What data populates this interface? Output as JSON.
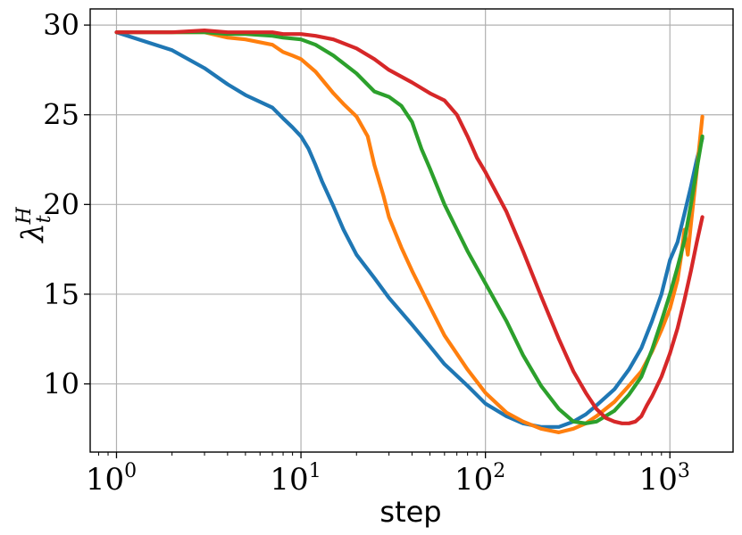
{
  "chart_data": {
    "type": "line",
    "title": "",
    "xlabel": "step",
    "ylabel": "λ",
    "ylabel_superscript": "H",
    "ylabel_subscript": "t",
    "xscale": "log",
    "xlim": [
      0.72,
      2200
    ],
    "ylim": [
      6.2,
      30.9
    ],
    "grid": true,
    "x_ticks": [
      {
        "value": 1,
        "base": "10",
        "exp": "0"
      },
      {
        "value": 10,
        "base": "10",
        "exp": "1"
      },
      {
        "value": 100,
        "base": "10",
        "exp": "2"
      },
      {
        "value": 1000,
        "base": "10",
        "exp": "3"
      }
    ],
    "y_ticks": [
      {
        "value": 10,
        "label": "10"
      },
      {
        "value": 15,
        "label": "15"
      },
      {
        "value": 20,
        "label": "20"
      },
      {
        "value": 25,
        "label": "25"
      },
      {
        "value": 30,
        "label": "30"
      }
    ],
    "series": [
      {
        "color": "#1f77b4",
        "x": [
          1,
          2,
          3,
          4,
          5,
          7,
          8,
          9,
          10,
          11,
          12,
          13,
          15,
          17,
          20,
          25,
          30,
          40,
          50,
          60,
          80,
          100,
          130,
          160,
          200,
          250,
          300,
          350,
          400,
          500,
          600,
          700,
          800,
          900,
          1000,
          1100,
          1200,
          1300,
          1400,
          1500
        ],
        "y": [
          29.6,
          28.6,
          27.6,
          26.7,
          26.1,
          25.4,
          24.8,
          24.3,
          23.8,
          23.1,
          22.2,
          21.3,
          19.9,
          18.6,
          17.2,
          15.9,
          14.8,
          13.3,
          12.1,
          11.1,
          9.9,
          8.9,
          8.2,
          7.8,
          7.6,
          7.6,
          7.9,
          8.3,
          8.8,
          9.7,
          10.8,
          12.0,
          13.5,
          15.0,
          16.9,
          17.9,
          19.5,
          21.0,
          22.5,
          23.7
        ]
      },
      {
        "color": "#ff7f0e",
        "x": [
          1,
          2,
          3,
          4,
          5,
          7,
          8,
          9,
          10,
          12,
          15,
          17,
          20,
          23,
          25,
          28,
          30,
          35,
          40,
          50,
          60,
          80,
          100,
          130,
          160,
          200,
          250,
          300,
          350,
          400,
          500,
          600,
          700,
          800,
          900,
          1000,
          1100,
          1150,
          1200,
          1250,
          1300,
          1400,
          1500
        ],
        "y": [
          29.6,
          29.6,
          29.6,
          29.3,
          29.2,
          28.9,
          28.5,
          28.3,
          28.1,
          27.4,
          26.2,
          25.6,
          24.9,
          23.8,
          22.2,
          20.5,
          19.3,
          17.6,
          16.3,
          14.3,
          12.7,
          10.8,
          9.5,
          8.4,
          7.9,
          7.5,
          7.3,
          7.5,
          7.8,
          8.2,
          9.0,
          9.9,
          10.7,
          11.8,
          13.0,
          14.2,
          15.8,
          17.1,
          18.6,
          17.2,
          18.9,
          21.9,
          24.9
        ]
      },
      {
        "color": "#2ca02c",
        "x": [
          1,
          2,
          3,
          4,
          5,
          7,
          8,
          10,
          12,
          15,
          20,
          25,
          30,
          35,
          40,
          45,
          50,
          60,
          70,
          80,
          100,
          130,
          160,
          200,
          250,
          300,
          350,
          400,
          500,
          600,
          700,
          800,
          900,
          1000,
          1100,
          1200,
          1300,
          1400,
          1500
        ],
        "y": [
          29.6,
          29.6,
          29.6,
          29.5,
          29.5,
          29.4,
          29.3,
          29.2,
          28.9,
          28.3,
          27.3,
          26.3,
          26.0,
          25.5,
          24.6,
          23.1,
          22.0,
          20.0,
          18.6,
          17.4,
          15.6,
          13.5,
          11.6,
          9.9,
          8.6,
          7.9,
          7.8,
          7.9,
          8.5,
          9.4,
          10.4,
          11.9,
          13.5,
          15.0,
          16.5,
          18.0,
          20.0,
          22.0,
          23.8
        ]
      },
      {
        "color": "#d62728",
        "x": [
          1,
          2,
          3,
          4,
          5,
          6,
          7,
          8,
          10,
          12,
          15,
          20,
          25,
          30,
          40,
          50,
          60,
          70,
          80,
          90,
          100,
          130,
          160,
          200,
          250,
          300,
          350,
          400,
          450,
          500,
          550,
          600,
          650,
          700,
          750,
          800,
          900,
          1000,
          1100,
          1200,
          1300,
          1400,
          1500
        ],
        "y": [
          29.6,
          29.6,
          29.7,
          29.6,
          29.6,
          29.6,
          29.6,
          29.5,
          29.5,
          29.4,
          29.2,
          28.7,
          28.1,
          27.5,
          26.8,
          26.2,
          25.8,
          25.0,
          23.8,
          22.6,
          21.8,
          19.6,
          17.4,
          14.9,
          12.5,
          10.7,
          9.5,
          8.6,
          8.1,
          7.9,
          7.8,
          7.8,
          7.9,
          8.2,
          8.8,
          9.3,
          10.4,
          11.7,
          13.1,
          14.7,
          16.3,
          17.9,
          19.3
        ]
      }
    ]
  }
}
